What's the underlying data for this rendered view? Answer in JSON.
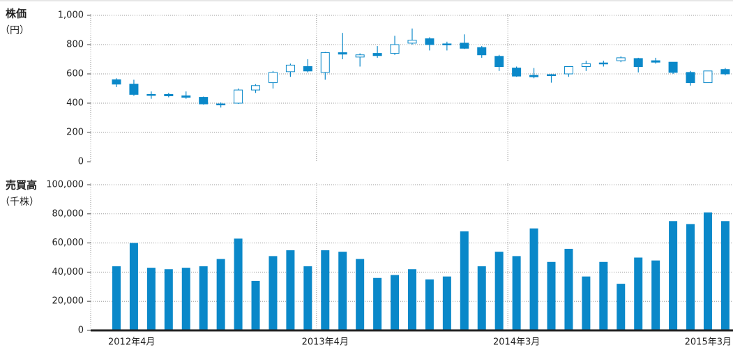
{
  "chart_data": [
    {
      "type": "candlestick",
      "ylabel": "株価",
      "yunit": "（円）",
      "color": "#0a88c9",
      "open": [
        560,
        530,
        460,
        460,
        450,
        440,
        395,
        400,
        490,
        540,
        615,
        650,
        610,
        745,
        715,
        740,
        740,
        810,
        840,
        805,
        810,
        780,
        720,
        640,
        590,
        595,
        600,
        650,
        675,
        690,
        705,
        690,
        680,
        610,
        540,
        630
      ],
      "high": [
        570,
        560,
        480,
        470,
        480,
        445,
        405,
        500,
        530,
        620,
        670,
        700,
        750,
        880,
        740,
        790,
        860,
        910,
        850,
        820,
        870,
        790,
        730,
        650,
        640,
        600,
        650,
        690,
        690,
        720,
        710,
        710,
        680,
        620,
        620,
        640
      ],
      "low": [
        510,
        450,
        430,
        440,
        430,
        390,
        370,
        395,
        470,
        500,
        580,
        610,
        560,
        700,
        650,
        710,
        730,
        800,
        760,
        760,
        770,
        710,
        620,
        580,
        570,
        540,
        580,
        620,
        650,
        680,
        610,
        670,
        600,
        520,
        540,
        590
      ],
      "close": [
        530,
        460,
        455,
        450,
        440,
        395,
        390,
        490,
        520,
        610,
        660,
        620,
        745,
        735,
        730,
        725,
        800,
        830,
        800,
        800,
        775,
        730,
        650,
        585,
        580,
        590,
        650,
        670,
        675,
        710,
        650,
        680,
        610,
        540,
        620,
        600
      ],
      "ylim": [
        0,
        1000
      ],
      "yticks": [
        0,
        200,
        400,
        600,
        800,
        {
          "value": 1000,
          "label": "1,000"
        }
      ],
      "grid": true
    },
    {
      "type": "bar",
      "ylabel": "売買高",
      "yunit": "（千株）",
      "color": "#0a88c9",
      "categories": [
        "2012年4月",
        null,
        null,
        null,
        null,
        null,
        null,
        null,
        null,
        null,
        null,
        null,
        "2013年4月",
        null,
        null,
        null,
        null,
        null,
        null,
        null,
        null,
        null,
        null,
        "2014年3月",
        null,
        null,
        null,
        null,
        null,
        null,
        null,
        null,
        null,
        null,
        null,
        "2015年3月"
      ],
      "values": [
        44000,
        60000,
        43000,
        42000,
        43000,
        44000,
        49000,
        63000,
        34000,
        51000,
        55000,
        44000,
        55000,
        54000,
        49000,
        36000,
        38000,
        42000,
        35000,
        37000,
        68000,
        44000,
        54000,
        51000,
        70000,
        47000,
        56000,
        37000,
        47000,
        32000,
        50000,
        48000,
        75000,
        73000,
        81000,
        75000
      ],
      "ylim": [
        0,
        100000
      ],
      "yticks": [
        0,
        {
          "value": 20000,
          "label": "20,000"
        },
        {
          "value": 40000,
          "label": "40,000"
        },
        {
          "value": 60000,
          "label": "60,000"
        },
        {
          "value": 80000,
          "label": "80,000"
        },
        {
          "value": 100000,
          "label": "100,000"
        }
      ],
      "grid": true
    }
  ]
}
